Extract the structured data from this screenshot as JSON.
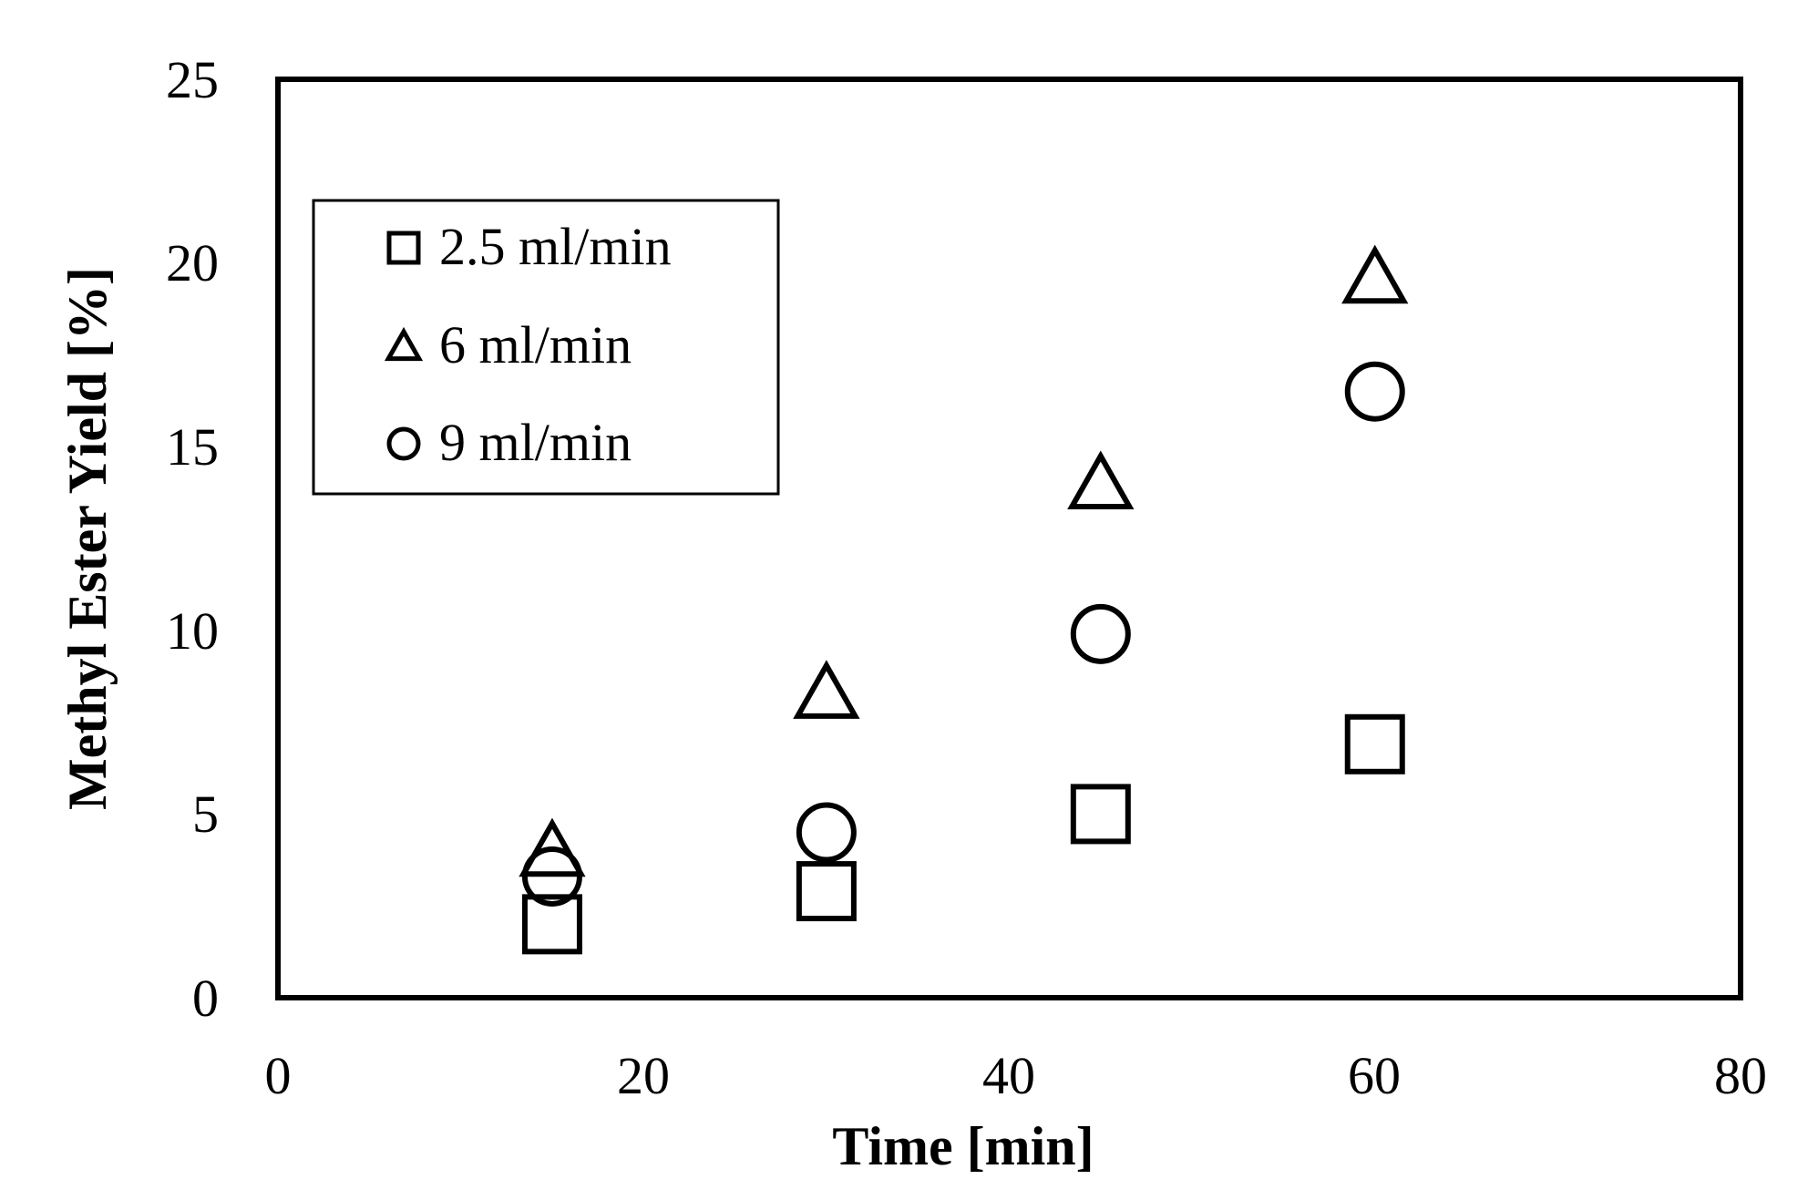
{
  "chart_data": {
    "type": "scatter",
    "title": "",
    "xlabel": "Time [min]",
    "ylabel": "Methyl Ester Yield [%]",
    "xlim": [
      0,
      80
    ],
    "ylim": [
      0,
      25
    ],
    "xticks": [
      "0",
      "20",
      "40",
      "60",
      "80"
    ],
    "yticks": [
      "0",
      "5",
      "10",
      "15",
      "20",
      "25"
    ],
    "grid": false,
    "legend_position": "top-left",
    "series": [
      {
        "name": "2.5 ml/min",
        "marker": "square",
        "x": [
          15,
          30,
          45,
          60
        ],
        "y": [
          2.0,
          2.9,
          5.0,
          6.9
        ]
      },
      {
        "name": "6 ml/min",
        "marker": "triangle",
        "x": [
          15,
          30,
          45,
          60
        ],
        "y": [
          4.0,
          8.3,
          14.0,
          19.6
        ]
      },
      {
        "name": "9 ml/min",
        "marker": "circle",
        "x": [
          15,
          30,
          45,
          60
        ],
        "y": [
          3.3,
          4.5,
          9.9,
          16.5
        ]
      }
    ],
    "colors": {
      "marker_stroke": "#000000",
      "background": "#ffffff"
    }
  }
}
